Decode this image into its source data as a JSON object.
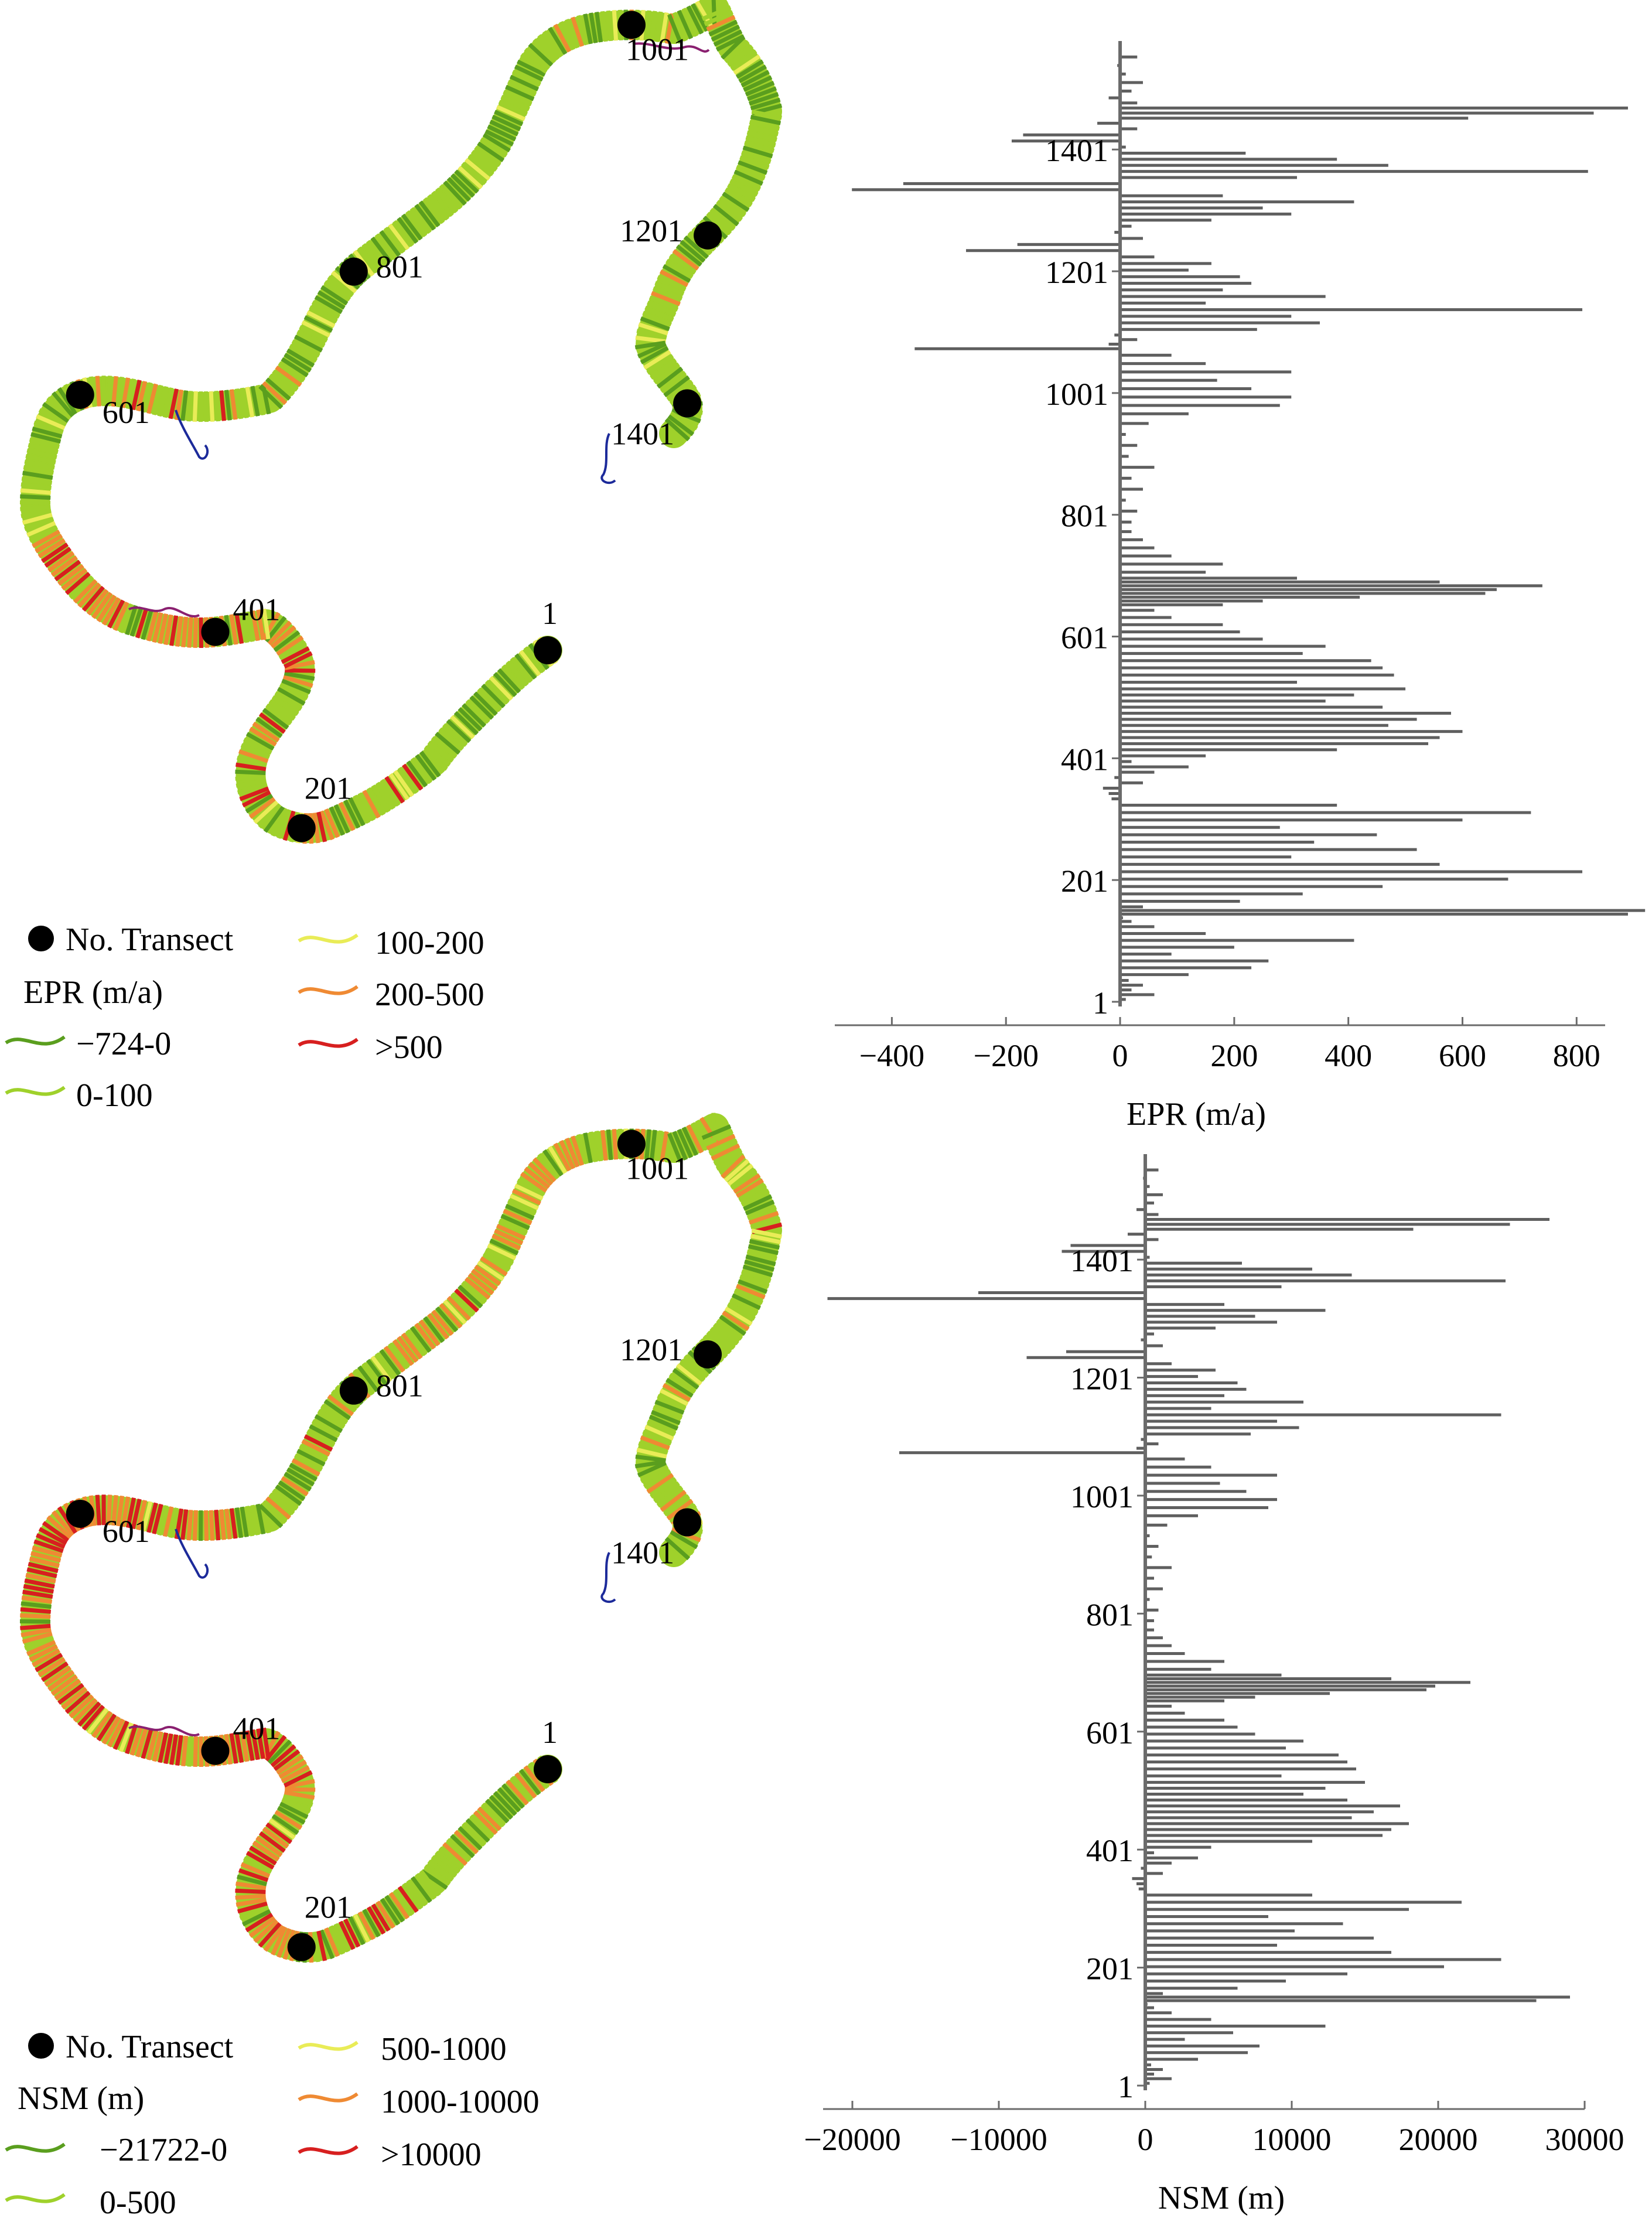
{
  "colors": {
    "bar": "#5f5f5f",
    "axis": "#6b6b6b",
    "class1": "#5a9e1e",
    "class2": "#9fd12b",
    "class3": "#e9ec57",
    "class4": "#ef8a33",
    "class5": "#d71f1f",
    "road_blue": "#1c2a9a",
    "road_purple": "#8a2070",
    "marker": "#000000"
  },
  "panels": [
    {
      "id": "epr",
      "map": {
        "transects": [
          {
            "label": "1"
          },
          {
            "label": "201"
          },
          {
            "label": "401"
          },
          {
            "label": "601"
          },
          {
            "label": "801"
          },
          {
            "label": "1001"
          },
          {
            "label": "1201"
          },
          {
            "label": "1401"
          }
        ],
        "legend": {
          "marker_label": "No. Transect",
          "title": "EPR (m/a)",
          "classes": [
            "−724-0",
            "0-100",
            "100-200",
            "200-500",
            ">500"
          ]
        }
      },
      "chart_data": {
        "type": "bar",
        "orientation": "horizontal",
        "xlabel": "EPR (m/a)",
        "ylabel": "",
        "xlim": [
          -500,
          850
        ],
        "xticks": [
          "−400",
          "−200",
          "0",
          "200",
          "400",
          "600",
          "800"
        ],
        "yticks": [
          "1",
          "201",
          "401",
          "601",
          "801",
          "1001",
          "1201",
          "1401"
        ],
        "ylim": [
          1,
          1560
        ],
        "segments": [
          {
            "from": 1,
            "to": 40,
            "values": [
              10,
              60,
              20,
              40,
              15
            ]
          },
          {
            "from": 40,
            "to": 130,
            "values": [
              120,
              230,
              260,
              90,
              200,
              410,
              150,
              60
            ]
          },
          {
            "from": 130,
            "to": 160,
            "values": [
              20,
              5,
              890,
              920,
              40
            ]
          },
          {
            "from": 160,
            "to": 330,
            "values": [
              210,
              320,
              460,
              680,
              810,
              560,
              300,
              520,
              340,
              450,
              280,
              600,
              720,
              380
            ]
          },
          {
            "from": 330,
            "to": 400,
            "values": [
              -15,
              -20,
              -30,
              40,
              -10,
              60,
              120,
              20
            ]
          },
          {
            "from": 400,
            "to": 520,
            "values": [
              150,
              380,
              540,
              560,
              600,
              470,
              520,
              580,
              460,
              360,
              410,
              500
            ]
          },
          {
            "from": 520,
            "to": 650,
            "values": [
              310,
              480,
              460,
              440,
              320,
              360,
              250,
              210,
              180,
              90,
              60
            ]
          },
          {
            "from": 650,
            "to": 700,
            "values": [
              180,
              250,
              420,
              640,
              660,
              740,
              560,
              310
            ]
          },
          {
            "from": 700,
            "to": 780,
            "values": [
              150,
              180,
              90,
              60,
              40,
              20
            ]
          },
          {
            "from": 780,
            "to": 960,
            "values": [
              20,
              30,
              10,
              40,
              20,
              60,
              15,
              30,
              10,
              50
            ]
          },
          {
            "from": 960,
            "to": 1070,
            "values": [
              120,
              280,
              300,
              230,
              170,
              300,
              150,
              90
            ]
          },
          {
            "from": 1070,
            "to": 1100,
            "values": [
              -360,
              -20,
              30,
              -10
            ]
          },
          {
            "from": 1100,
            "to": 1230,
            "values": [
              240,
              350,
              300,
              810,
              150,
              360,
              180,
              230,
              210,
              120,
              160,
              60
            ]
          },
          {
            "from": 1230,
            "to": 1330,
            "values": [
              -270,
              -180,
              40,
              -10,
              20,
              160,
              300,
              250,
              410,
              180
            ]
          },
          {
            "from": 1330,
            "to": 1440,
            "values": [
              -470,
              -380,
              310,
              820,
              470,
              380,
              220,
              10,
              -190,
              -170,
              30
            ]
          },
          {
            "from": 1440,
            "to": 1490,
            "values": [
              -40,
              610,
              830,
              890,
              30,
              -20
            ]
          },
          {
            "from": 1490,
            "to": 1560,
            "values": [
              20,
              40,
              10,
              -5,
              30
            ]
          }
        ]
      }
    },
    {
      "id": "nsm",
      "map": {
        "transects": [
          {
            "label": "1"
          },
          {
            "label": "201"
          },
          {
            "label": "401"
          },
          {
            "label": "601"
          },
          {
            "label": "801"
          },
          {
            "label": "1001"
          },
          {
            "label": "1201"
          },
          {
            "label": "1401"
          }
        ],
        "legend": {
          "marker_label": "No. Transect",
          "title": "NSM (m)",
          "classes": [
            "−21722-0",
            "0-500",
            "500-1000",
            "1000-10000",
            ">10000"
          ]
        }
      },
      "chart_data": {
        "type": "bar",
        "orientation": "horizontal",
        "xlabel": "NSM (m)",
        "ylabel": "",
        "xlim": [
          -22000,
          30000
        ],
        "xticks": [
          "−20000",
          "−10000",
          "0",
          "10000",
          "20000",
          "30000"
        ],
        "yticks": [
          "1",
          "201",
          "401",
          "601",
          "801",
          "1001",
          "1201",
          "1401"
        ],
        "ylim": [
          1,
          1560
        ],
        "segments": [
          {
            "from": 1,
            "to": 40,
            "values": [
              300,
              1800,
              600,
              1200,
              400
            ]
          },
          {
            "from": 40,
            "to": 130,
            "values": [
              3600,
              7000,
              7800,
              2700,
              6000,
              12300,
              4500,
              1800
            ]
          },
          {
            "from": 130,
            "to": 160,
            "values": [
              600,
              150,
              26700,
              29000,
              1200
            ]
          },
          {
            "from": 160,
            "to": 330,
            "values": [
              6300,
              9600,
              13800,
              20400,
              24300,
              16800,
              9000,
              15600,
              10200,
              13500,
              8400,
              18000,
              21600,
              11400
            ]
          },
          {
            "from": 330,
            "to": 400,
            "values": [
              -450,
              -600,
              -900,
              1200,
              -300,
              1800,
              3600,
              600
            ]
          },
          {
            "from": 400,
            "to": 520,
            "values": [
              4500,
              11400,
              16200,
              16800,
              18000,
              14100,
              15600,
              17400,
              13800,
              10800,
              12300,
              15000
            ]
          },
          {
            "from": 520,
            "to": 650,
            "values": [
              9300,
              14400,
              13800,
              13200,
              9600,
              10800,
              7500,
              6300,
              5400,
              2700,
              1800
            ]
          },
          {
            "from": 650,
            "to": 700,
            "values": [
              5400,
              7500,
              12600,
              19200,
              19800,
              22200,
              16800,
              9300
            ]
          },
          {
            "from": 700,
            "to": 780,
            "values": [
              4500,
              5400,
              2700,
              1800,
              1200,
              600
            ]
          },
          {
            "from": 780,
            "to": 960,
            "values": [
              600,
              900,
              300,
              1200,
              600,
              1800,
              450,
              900,
              300,
              1500
            ]
          },
          {
            "from": 960,
            "to": 1070,
            "values": [
              3600,
              8400,
              9000,
              6900,
              5100,
              9000,
              4500,
              2700
            ]
          },
          {
            "from": 1070,
            "to": 1100,
            "values": [
              -16800,
              -600,
              900,
              -300
            ]
          },
          {
            "from": 1100,
            "to": 1230,
            "values": [
              7200,
              10500,
              9000,
              24300,
              4500,
              10800,
              5400,
              6900,
              6300,
              3600,
              4800,
              1800
            ]
          },
          {
            "from": 1230,
            "to": 1330,
            "values": [
              -8100,
              -5400,
              1200,
              -300,
              600,
              4800,
              9000,
              7500,
              12300,
              5400
            ]
          },
          {
            "from": 1330,
            "to": 1440,
            "values": [
              -21700,
              -11400,
              9300,
              24600,
              14100,
              11400,
              6600,
              300,
              -5700,
              -5100,
              900
            ]
          },
          {
            "from": 1440,
            "to": 1490,
            "values": [
              -1200,
              18300,
              24900,
              27600,
              900,
              -600
            ]
          },
          {
            "from": 1490,
            "to": 1560,
            "values": [
              600,
              1200,
              300,
              -150,
              900
            ]
          }
        ]
      }
    }
  ]
}
